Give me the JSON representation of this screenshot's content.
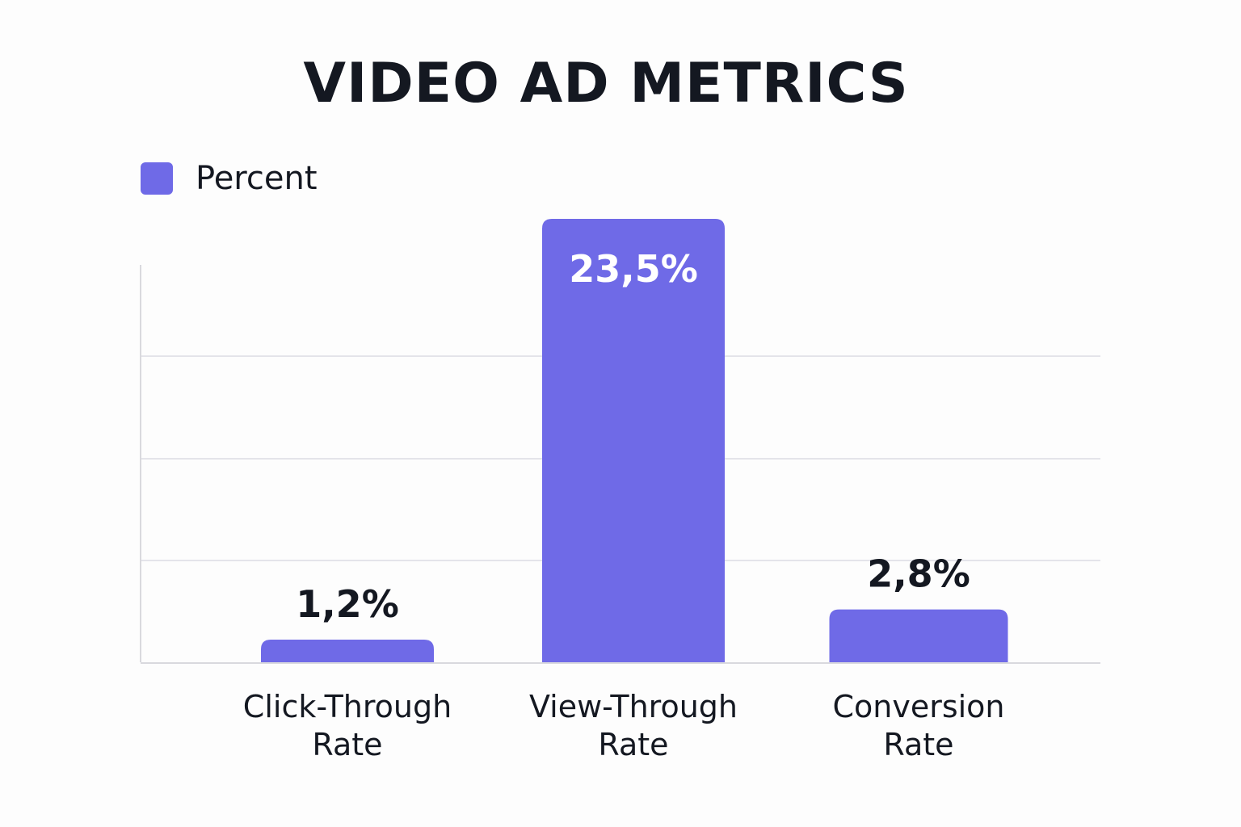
{
  "chart_data": {
    "type": "bar",
    "title": "VIDEO AD METRICS",
    "xlabel": "",
    "ylabel": "",
    "legend": {
      "position": "top-left",
      "entries": [
        "Percent"
      ]
    },
    "categories": [
      [
        "Click-Through",
        "Rate"
      ],
      [
        "View-Through",
        "Rate"
      ],
      [
        "Conversion",
        "Rate"
      ]
    ],
    "series": [
      {
        "name": "Percent",
        "values": [
          1.2,
          23.5,
          2.8
        ],
        "data_labels": [
          "1,2%",
          "23,5%",
          "2,8%"
        ]
      }
    ],
    "ylim": [
      0,
      23.5
    ],
    "grid": true,
    "colors": {
      "bar": "#6f6ae7",
      "gridline": "#e4e4ea",
      "axis": "#d9d9de",
      "label_dark": "#141821",
      "label_light": "#ffffff"
    }
  }
}
